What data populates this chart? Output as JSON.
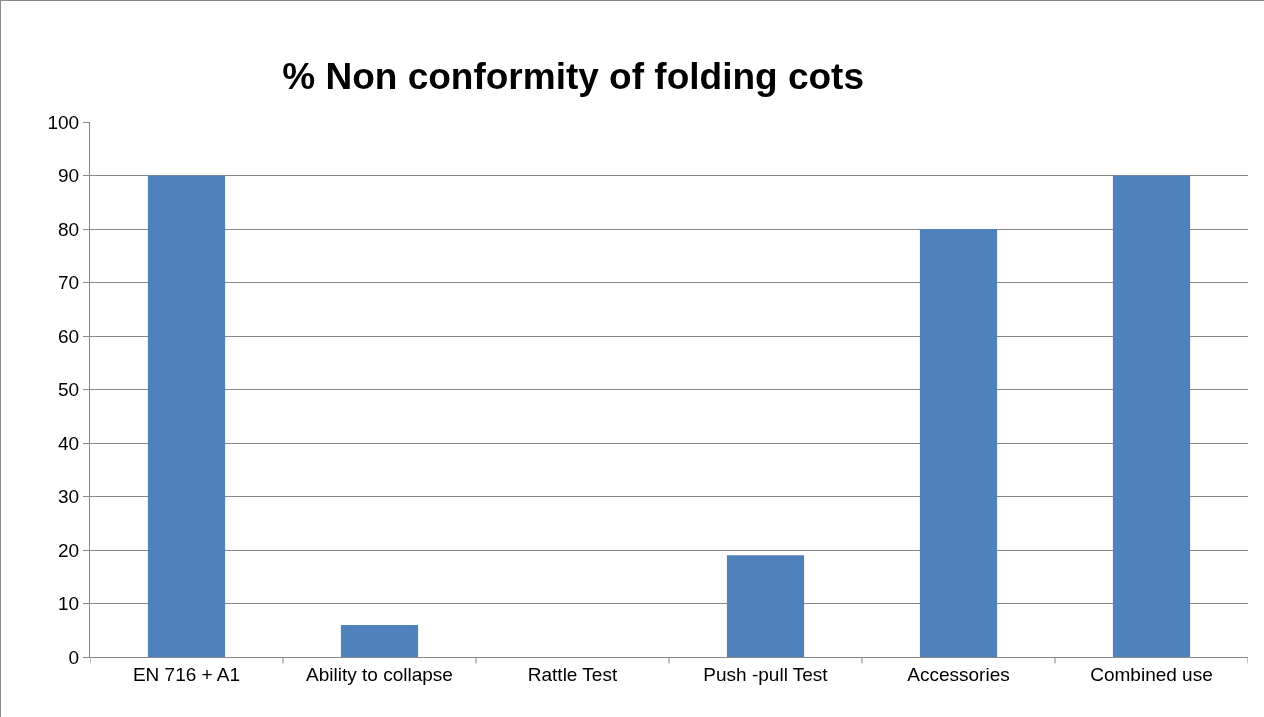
{
  "chart_data": {
    "type": "bar",
    "title": "% Non conformity of folding cots",
    "categories": [
      "EN 716 + A1",
      "Ability to collapse",
      "Rattle Test",
      "Push -pull Test",
      "Accessories",
      "Combined use"
    ],
    "values": [
      90,
      6,
      0,
      19,
      80,
      90
    ],
    "color": "#4f81bd",
    "ylim": [
      0,
      100
    ],
    "yticks": [
      0,
      10,
      20,
      30,
      40,
      50,
      60,
      70,
      80,
      90,
      100
    ],
    "grid": "y",
    "legend": false
  }
}
